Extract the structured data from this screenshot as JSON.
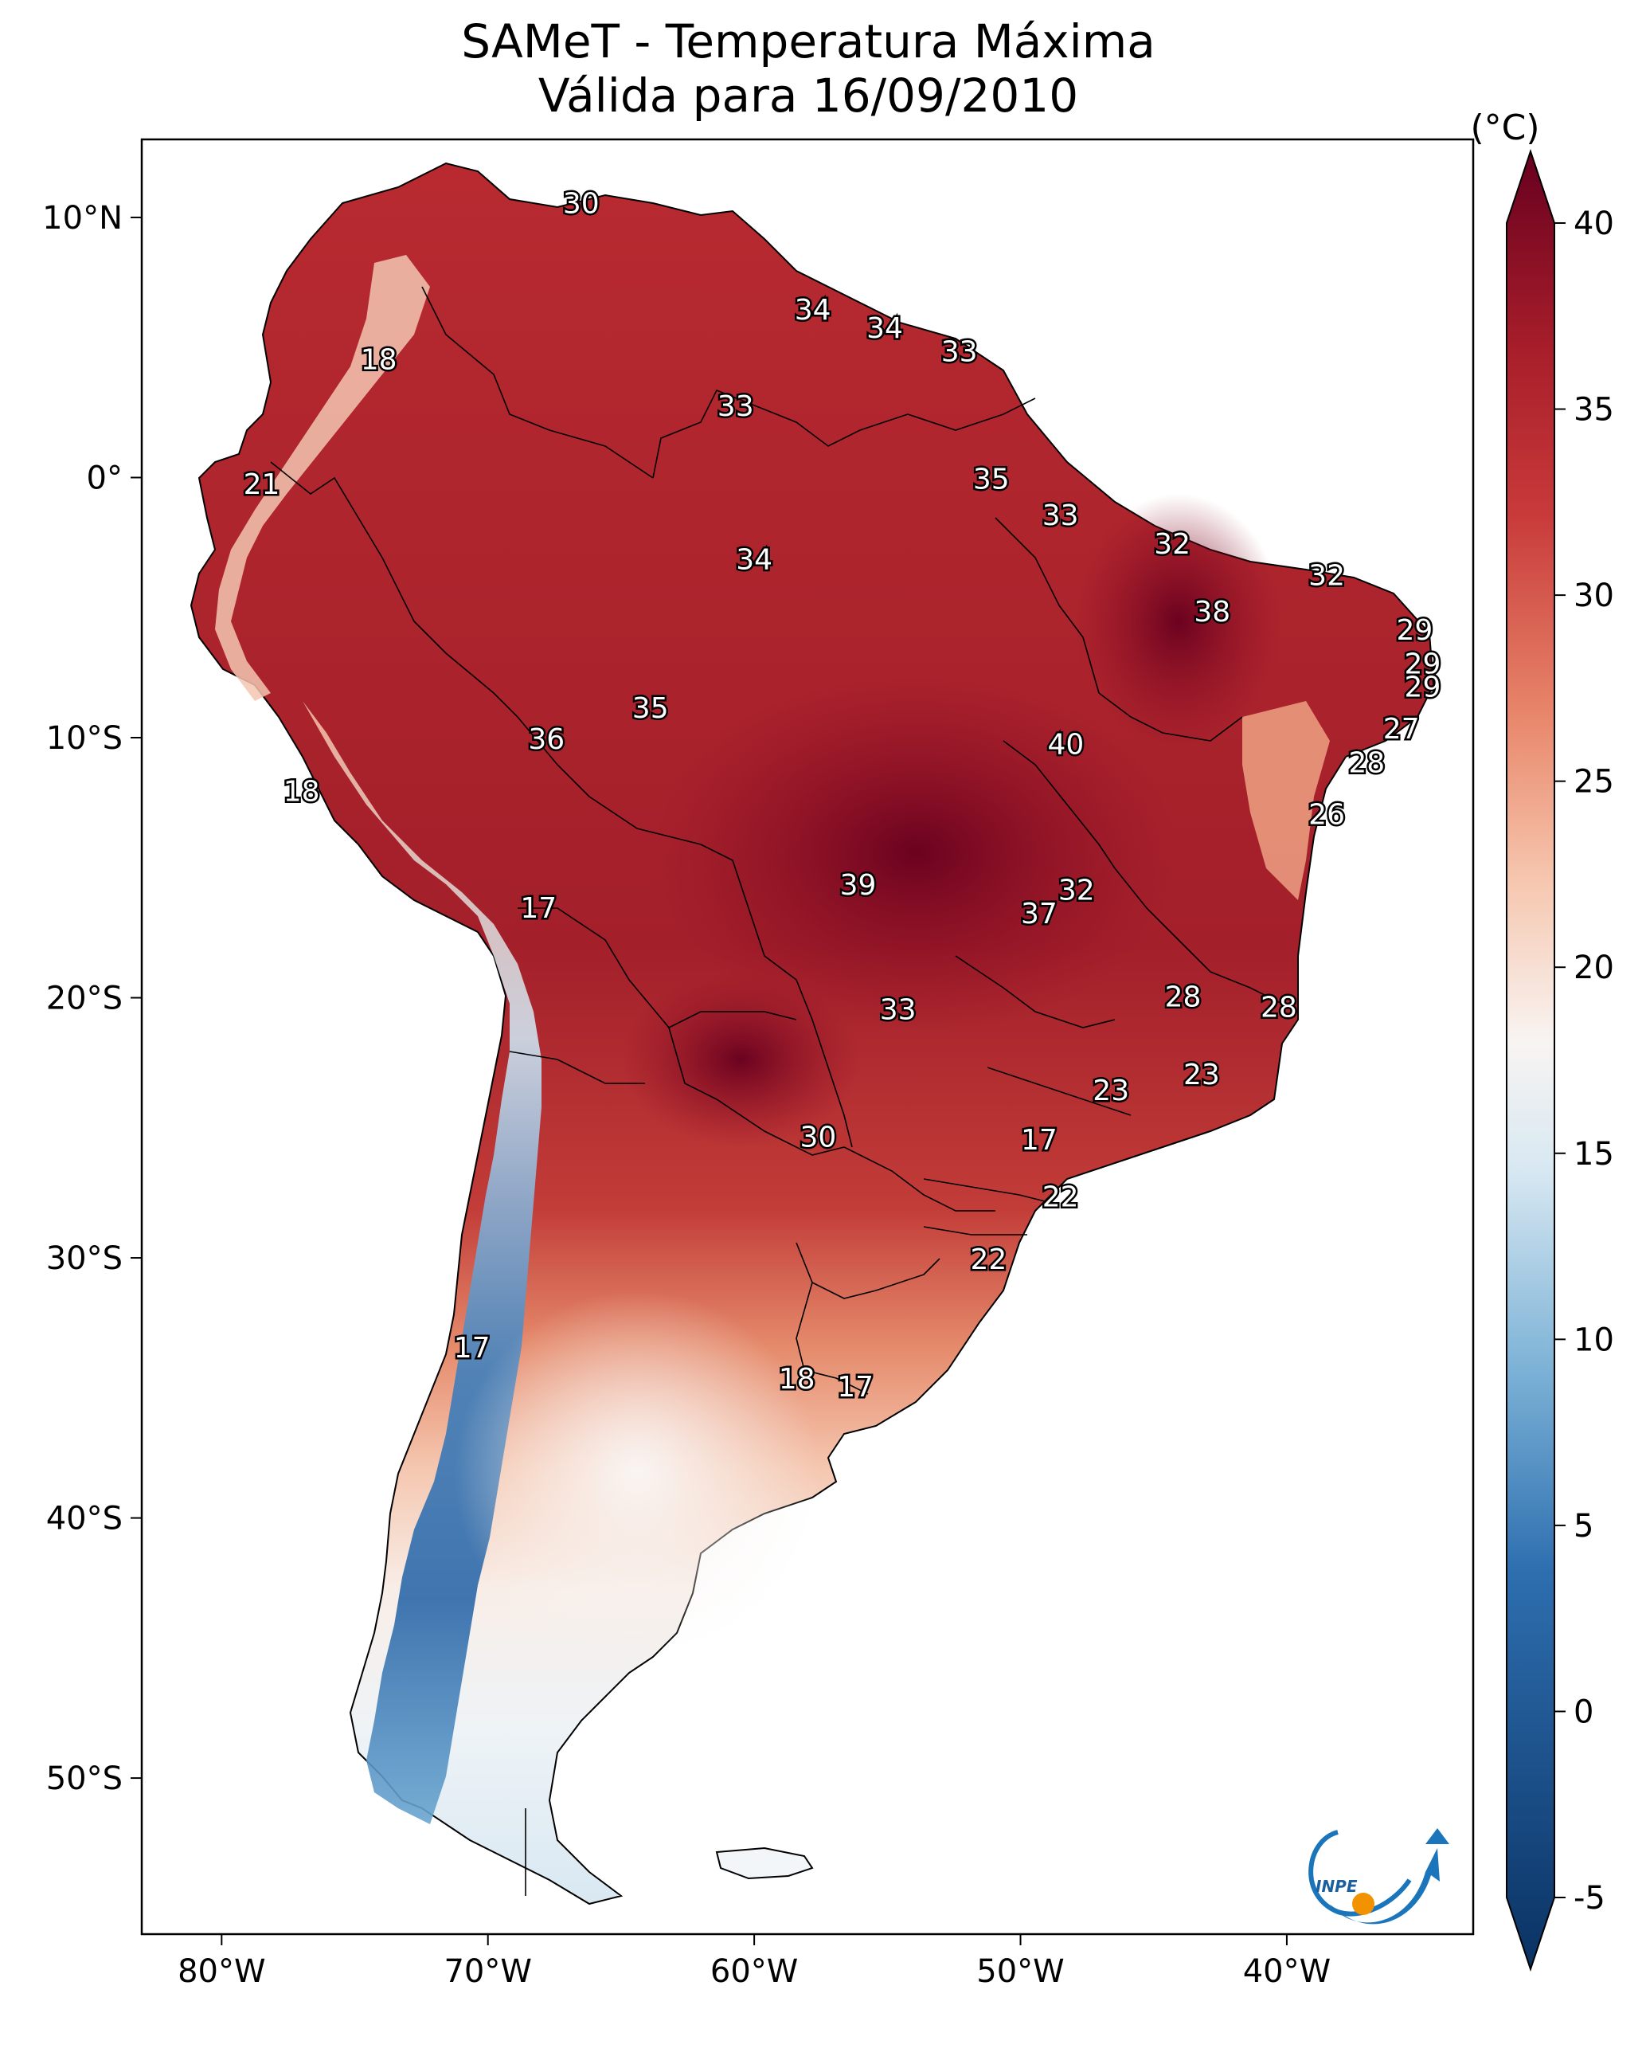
{
  "title": {
    "line1": "SAMeT - Temperatura Máxima",
    "line2": "Válida para 16/09/2010"
  },
  "colorbar": {
    "unit_label": "(°C)",
    "ticks": [
      "40",
      "35",
      "30",
      "25",
      "20",
      "15",
      "10",
      "5",
      "0",
      "-5"
    ],
    "tick_values": [
      40,
      35,
      30,
      25,
      20,
      15,
      10,
      5,
      0,
      -5
    ],
    "range": [
      -5,
      40
    ],
    "colors": {
      "min": "#0a3263",
      "c5": "#2e6fb0",
      "c10": "#7cb2d6",
      "c15": "#d8e8f2",
      "c18": "#f8f4f2",
      "c22": "#f6c6ae",
      "c26": "#e8866a",
      "c31": "#c83a3a",
      "c35": "#a81e2a",
      "max": "#67001f"
    }
  },
  "axes": {
    "lat_labels": [
      "10°N",
      "0°",
      "10°S",
      "20°S",
      "30°S",
      "40°S",
      "50°S"
    ],
    "lat_values": [
      10,
      0,
      -10,
      -20,
      -30,
      -40,
      -50
    ],
    "lon_labels": [
      "80°W",
      "70°W",
      "60°W",
      "50°W",
      "40°W"
    ],
    "lon_values": [
      -80,
      -70,
      -60,
      -50,
      -40
    ],
    "extent": {
      "lon_min": -83,
      "lon_max": -33,
      "lat_min": -56,
      "lat_max": 13
    }
  },
  "stations": [
    {
      "value": "30",
      "lon": -66.5,
      "lat": 10.6
    },
    {
      "value": "34",
      "lon": -57.8,
      "lat": 6.5
    },
    {
      "value": "34",
      "lon": -55.1,
      "lat": 5.8
    },
    {
      "value": "33",
      "lon": -52.3,
      "lat": 4.9
    },
    {
      "value": "18",
      "lon": -74.1,
      "lat": 4.6
    },
    {
      "value": "33",
      "lon": -60.7,
      "lat": 2.8
    },
    {
      "value": "35",
      "lon": -51.1,
      "lat": 0.0
    },
    {
      "value": "21",
      "lon": -78.5,
      "lat": -0.2
    },
    {
      "value": "33",
      "lon": -48.5,
      "lat": -1.4
    },
    {
      "value": "32",
      "lon": -44.3,
      "lat": -2.5
    },
    {
      "value": "34",
      "lon": -60.0,
      "lat": -3.1
    },
    {
      "value": "32",
      "lon": -38.5,
      "lat": -3.7
    },
    {
      "value": "38",
      "lon": -42.8,
      "lat": -5.1
    },
    {
      "value": "29",
      "lon": -35.2,
      "lat": -5.8
    },
    {
      "value": "29",
      "lon": -34.9,
      "lat": -7.1
    },
    {
      "value": "29",
      "lon": -34.9,
      "lat": -8.0
    },
    {
      "value": "35",
      "lon": -63.9,
      "lat": -8.8
    },
    {
      "value": "36",
      "lon": -67.8,
      "lat": -10.0
    },
    {
      "value": "40",
      "lon": -48.3,
      "lat": -10.2
    },
    {
      "value": "27",
      "lon": -35.7,
      "lat": -9.6
    },
    {
      "value": "28",
      "lon": -37.0,
      "lat": -10.9
    },
    {
      "value": "18",
      "lon": -77.0,
      "lat": -12.0
    },
    {
      "value": "26",
      "lon": -38.5,
      "lat": -12.9
    },
    {
      "value": "39",
      "lon": -56.1,
      "lat": -15.6
    },
    {
      "value": "32",
      "lon": -47.9,
      "lat": -15.8
    },
    {
      "value": "17",
      "lon": -68.1,
      "lat": -16.5
    },
    {
      "value": "37",
      "lon": -49.3,
      "lat": -16.7
    },
    {
      "value": "28",
      "lon": -43.9,
      "lat": -19.9
    },
    {
      "value": "28",
      "lon": -40.3,
      "lat": -20.3
    },
    {
      "value": "33",
      "lon": -54.6,
      "lat": -20.4
    },
    {
      "value": "23",
      "lon": -43.2,
      "lat": -22.9
    },
    {
      "value": "23",
      "lon": -46.6,
      "lat": -23.5
    },
    {
      "value": "30",
      "lon": -57.6,
      "lat": -25.3
    },
    {
      "value": "17",
      "lon": -49.3,
      "lat": -25.4
    },
    {
      "value": "22",
      "lon": -48.5,
      "lat": -27.6
    },
    {
      "value": "22",
      "lon": -51.2,
      "lat": -30.0
    },
    {
      "value": "17",
      "lon": -70.6,
      "lat": -33.4
    },
    {
      "value": "18",
      "lon": -58.4,
      "lat": -34.6
    },
    {
      "value": "17",
      "lon": -56.2,
      "lat": -34.9
    }
  ],
  "logo": {
    "text": "INPE"
  }
}
